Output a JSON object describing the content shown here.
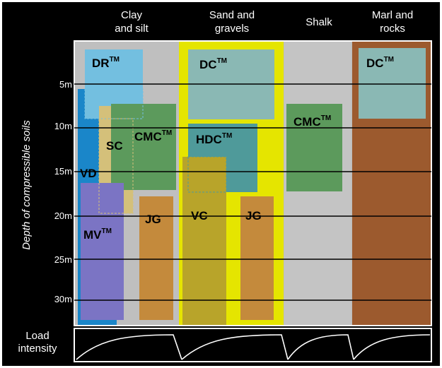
{
  "columns": [
    {
      "id": "clay",
      "lines": [
        "Clay",
        "and silt"
      ]
    },
    {
      "id": "sand",
      "lines": [
        "Sand and",
        "gravels"
      ]
    },
    {
      "id": "shalk",
      "lines": [
        "Shalk"
      ]
    },
    {
      "id": "marl",
      "lines": [
        "Marl and",
        "rocks"
      ]
    }
  ],
  "y_axis": {
    "title": "Depth of compressible soils",
    "ticks": [
      "5m",
      "10m",
      "15m",
      "20m",
      "25m",
      "30m"
    ]
  },
  "load": {
    "lines": [
      "Load",
      "intensity"
    ]
  },
  "techniques": [
    {
      "id": "dr",
      "label": "DR",
      "tm": true,
      "color": "#73bfe0"
    },
    {
      "id": "dc1",
      "label": "DC",
      "tm": true,
      "color": "#8ab8b4"
    },
    {
      "id": "dc2",
      "label": "DC",
      "tm": true,
      "color": "#8ab8b4"
    },
    {
      "id": "vd",
      "label": "VD",
      "tm": false,
      "color": "#1a86c9"
    },
    {
      "id": "sc",
      "label": "SC",
      "tm": false,
      "color": "#d4c07a"
    },
    {
      "id": "cmc1",
      "label": "CMC",
      "tm": true,
      "color": "#5c9a5c"
    },
    {
      "id": "cmc2",
      "label": "CMC",
      "tm": true,
      "color": "#5c9a5c"
    },
    {
      "id": "hdc",
      "label": "HDC",
      "tm": true,
      "color": "#4f9a9a"
    },
    {
      "id": "mv",
      "label": "MV",
      "tm": true,
      "color": "#7b74c4"
    },
    {
      "id": "jg1",
      "label": "JG",
      "tm": false,
      "color": "#c48a3c"
    },
    {
      "id": "jg2",
      "label": "JG",
      "tm": false,
      "color": "#c48a3c"
    },
    {
      "id": "vc",
      "label": "VC",
      "tm": false,
      "color": "#b8a42a"
    }
  ],
  "tm_mark": "TM",
  "colors": {
    "background": "#000000",
    "panel": "#bfbfbf",
    "sand_band": "#e5e500",
    "marl_band": "#9c5a2e",
    "grid": "#000000",
    "text": "#ffffff"
  }
}
